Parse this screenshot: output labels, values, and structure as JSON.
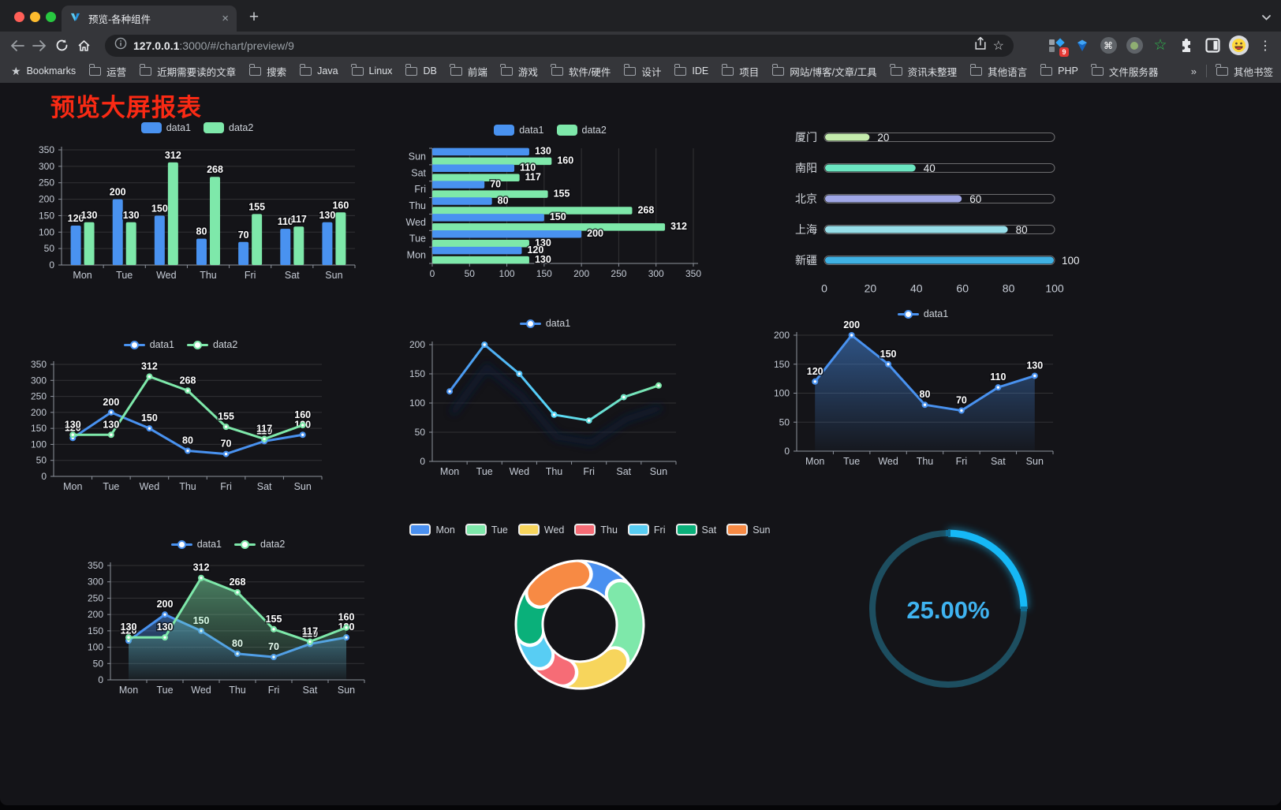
{
  "browser": {
    "tab_title": "预览-各种组件",
    "tab_close": "×",
    "new_tab": "+",
    "url_host": "127.0.0.1",
    "url_rest": ":3000/#/chart/preview/9",
    "bookmarks_root_label": "Bookmarks",
    "bookmarks": [
      "运营",
      "近期需要读的文章",
      "搜索",
      "Java",
      "Linux",
      "DB",
      "前端",
      "游戏",
      "软件/硬件",
      "设计",
      "IDE",
      "项目",
      "网站/博客/文章/工具",
      "资讯未整理",
      "其他语言",
      "PHP",
      "文件服务器"
    ],
    "bookmarks_overflow": "»",
    "other_bookmarks": "其他书签",
    "extension_badge": "9",
    "menu_dots": "⋮"
  },
  "page": {
    "title": "预览大屏报表",
    "title_color": "#fa2a14",
    "background": "#141418"
  },
  "chart_data": [
    {
      "id": "bar-vertical",
      "type": "bar",
      "categories": [
        "Mon",
        "Tue",
        "Wed",
        "Thu",
        "Fri",
        "Sat",
        "Sun"
      ],
      "series": [
        {
          "name": "data1",
          "color": "#4992f0",
          "values": [
            120,
            200,
            150,
            80,
            70,
            110,
            130
          ]
        },
        {
          "name": "data2",
          "color": "#7ee8aa",
          "values": [
            130,
            130,
            312,
            268,
            155,
            117,
            160
          ]
        }
      ],
      "ylim": [
        0,
        350
      ],
      "ytick": 50,
      "legend_position": "top",
      "grid": true
    },
    {
      "id": "bar-horizontal",
      "type": "bar",
      "orientation": "horizontal",
      "categories": [
        "Mon",
        "Tue",
        "Wed",
        "Thu",
        "Fri",
        "Sat",
        "Sun"
      ],
      "series": [
        {
          "name": "data1",
          "color": "#4992f0",
          "values": [
            120,
            200,
            150,
            80,
            70,
            110,
            130
          ]
        },
        {
          "name": "data2",
          "color": "#7ee8aa",
          "values": [
            130,
            130,
            312,
            268,
            155,
            117,
            160
          ]
        }
      ],
      "xlim": [
        0,
        350
      ],
      "xtick": 50,
      "legend_position": "top",
      "grid": true
    },
    {
      "id": "capsule",
      "type": "bar",
      "subtype": "capsule-progress",
      "categories": [
        "厦门",
        "南阳",
        "北京",
        "上海",
        "新疆"
      ],
      "values": [
        20,
        40,
        60,
        80,
        100
      ],
      "colors": [
        "#c4ebad",
        "#6be6c1",
        "#a0a7e6",
        "#96dee8",
        "#3fb1e3"
      ],
      "xticks": [
        0,
        20,
        40,
        60,
        80,
        100
      ],
      "xlim": [
        0,
        100
      ]
    },
    {
      "id": "line-dual",
      "type": "line",
      "categories": [
        "Mon",
        "Tue",
        "Wed",
        "Thu",
        "Fri",
        "Sat",
        "Sun"
      ],
      "series": [
        {
          "name": "data1",
          "color": "#4992f0",
          "values": [
            120,
            200,
            150,
            80,
            70,
            110,
            130
          ]
        },
        {
          "name": "data2",
          "color": "#7ee8aa",
          "values": [
            130,
            130,
            312,
            268,
            155,
            117,
            160
          ]
        }
      ],
      "ylim": [
        0,
        350
      ],
      "ytick": 50,
      "labels": true,
      "legend_position": "top"
    },
    {
      "id": "line-gradient",
      "type": "line",
      "categories": [
        "Mon",
        "Tue",
        "Wed",
        "Thu",
        "Fri",
        "Sat",
        "Sun"
      ],
      "series": [
        {
          "name": "data1",
          "color_gradient": [
            "#4992f0",
            "#58d9f9",
            "#7ee8aa"
          ],
          "values": [
            120,
            200,
            150,
            80,
            70,
            110,
            130
          ]
        }
      ],
      "ylim": [
        0,
        200
      ],
      "ytick": 50,
      "labels": false,
      "shadow": true,
      "legend_position": "top"
    },
    {
      "id": "line-area",
      "type": "area",
      "categories": [
        "Mon",
        "Tue",
        "Wed",
        "Thu",
        "Fri",
        "Sat",
        "Sun"
      ],
      "series": [
        {
          "name": "data1",
          "color": "#4992f0",
          "area": true,
          "values": [
            120,
            200,
            150,
            80,
            70,
            110,
            130
          ]
        }
      ],
      "ylim": [
        0,
        200
      ],
      "ytick": 50,
      "labels": true,
      "legend_position": "top"
    },
    {
      "id": "line-area-dual",
      "type": "area",
      "categories": [
        "Mon",
        "Tue",
        "Wed",
        "Thu",
        "Fri",
        "Sat",
        "Sun"
      ],
      "series": [
        {
          "name": "data1",
          "color": "#4992f0",
          "area": true,
          "values": [
            120,
            200,
            150,
            80,
            70,
            110,
            130
          ]
        },
        {
          "name": "data2",
          "color": "#7ee8aa",
          "area": true,
          "values": [
            130,
            130,
            312,
            268,
            155,
            117,
            160
          ]
        }
      ],
      "ylim": [
        0,
        350
      ],
      "ytick": 50,
      "labels": true,
      "legend_position": "top"
    },
    {
      "id": "donut",
      "type": "pie",
      "categories": [
        "Mon",
        "Tue",
        "Wed",
        "Thu",
        "Fri",
        "Sat",
        "Sun"
      ],
      "values": [
        120,
        200,
        150,
        80,
        70,
        110,
        130
      ],
      "colors": [
        "#4a90f0",
        "#7ee8aa",
        "#f7d55c",
        "#f66c76",
        "#58cdf3",
        "#0ab07a",
        "#f78a44"
      ],
      "border_color": "#ffffff",
      "legend_position": "top"
    },
    {
      "id": "gauge",
      "type": "gauge",
      "value_percent": 25,
      "label": "25.00%",
      "color": "#16b8f6",
      "track_color": "#1d4e60",
      "text_color": "#3fb3f0"
    }
  ]
}
